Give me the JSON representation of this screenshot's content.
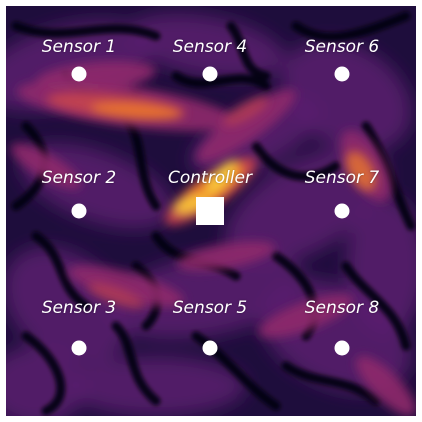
{
  "colors": {
    "field_base": "#1e0d3c",
    "field_dark": "#07030f",
    "field_purple": "#5a1d6e",
    "field_magenta": "#8f2a6c",
    "field_red": "#c9444d",
    "field_orange": "#ef7b27",
    "field_yellow": "#f9c93b",
    "marker": "#ffffff",
    "label_text": "#ffffff"
  },
  "controller": {
    "label": "Controller",
    "icon": "square"
  },
  "sensors": [
    {
      "id": "sensor-1",
      "label": "Sensor 1",
      "icon": "circle"
    },
    {
      "id": "sensor-4",
      "label": "Sensor 4",
      "icon": "circle"
    },
    {
      "id": "sensor-6",
      "label": "Sensor 6",
      "icon": "circle"
    },
    {
      "id": "sensor-2",
      "label": "Sensor 2",
      "icon": "circle"
    },
    {
      "id": "sensor-7",
      "label": "Sensor 7",
      "icon": "circle"
    },
    {
      "id": "sensor-3",
      "label": "Sensor 3",
      "icon": "circle"
    },
    {
      "id": "sensor-5",
      "label": "Sensor 5",
      "icon": "circle"
    },
    {
      "id": "sensor-8",
      "label": "Sensor 8",
      "icon": "circle"
    }
  ]
}
